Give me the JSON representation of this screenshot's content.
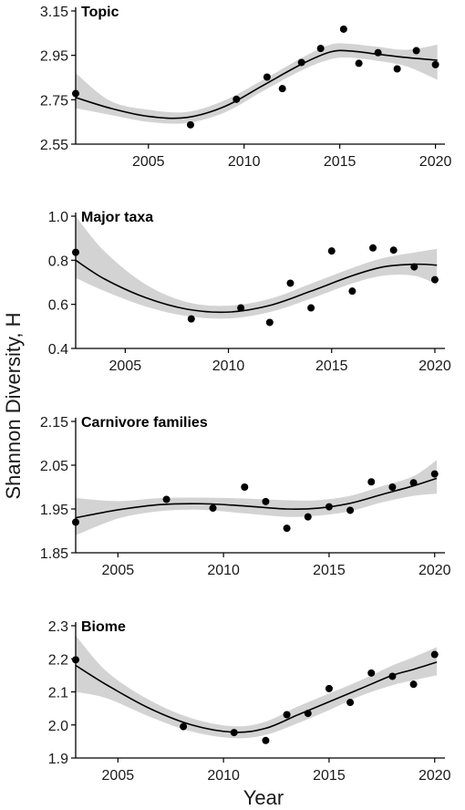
{
  "ylabel": "Shannon Diversity, H",
  "xlabel": "Year",
  "colors": {
    "band": "#d3d3d3",
    "line": "#000000",
    "point": "#000000",
    "axis": "#000000"
  },
  "chart_data": [
    {
      "type": "scatter",
      "title": "Topic",
      "xlim": [
        2001.2,
        2020.4
      ],
      "ylim": [
        2.55,
        3.15
      ],
      "xticks": [
        2005,
        2010,
        2015,
        2020
      ],
      "yticks": [
        2.55,
        2.75,
        2.95,
        3.15
      ],
      "xtick_labels": [
        "2005",
        "2010",
        "2015",
        "2020"
      ],
      "ytick_labels": [
        "2.55",
        "2.75",
        "2.95",
        "3.15"
      ],
      "points": {
        "x": [
          2001.2,
          2007.2,
          2009.6,
          2011.2,
          2012.0,
          2013.0,
          2014.0,
          2015.2,
          2016.0,
          2017.0,
          2018.0,
          2019.0,
          2020.0
        ],
        "y": [
          2.778,
          2.637,
          2.752,
          2.852,
          2.8,
          2.918,
          2.981,
          3.068,
          2.914,
          2.962,
          2.889,
          2.971,
          2.908
        ]
      },
      "smooth": {
        "x": [
          2001.2,
          2003,
          2005,
          2007,
          2009,
          2011,
          2013,
          2014.5,
          2015.5,
          2017,
          2018.5,
          2020.1
        ],
        "y": [
          2.76,
          2.712,
          2.675,
          2.67,
          2.72,
          2.815,
          2.91,
          2.965,
          2.97,
          2.955,
          2.94,
          2.928
        ],
        "lower": [
          2.712,
          2.682,
          2.65,
          2.645,
          2.693,
          2.79,
          2.882,
          2.932,
          2.94,
          2.925,
          2.9,
          2.84
        ],
        "upper": [
          2.87,
          2.745,
          2.705,
          2.695,
          2.748,
          2.84,
          2.938,
          2.998,
          3.002,
          2.988,
          2.975,
          2.998
        ]
      }
    },
    {
      "type": "scatter",
      "title": "Major taxa",
      "xlim": [
        2002.6,
        2020.4
      ],
      "ylim": [
        0.4,
        1.0
      ],
      "xticks": [
        2005,
        2010,
        2015,
        2020
      ],
      "yticks": [
        0.4,
        0.6,
        0.8,
        1.0
      ],
      "xtick_labels": [
        "2005",
        "2010",
        "2015",
        "2020"
      ],
      "ytick_labels": [
        "0.4",
        "0.6",
        "0.8",
        "1.0"
      ],
      "points": {
        "x": [
          2002.6,
          2008.2,
          2010.6,
          2012.0,
          2013.0,
          2014.0,
          2015.0,
          2016.0,
          2017.0,
          2018.0,
          2019.0,
          2020.0
        ],
        "y": [
          0.836,
          0.534,
          0.584,
          0.518,
          0.696,
          0.584,
          0.842,
          0.66,
          0.856,
          0.846,
          0.77,
          0.712
        ]
      },
      "smooth": {
        "x": [
          2002.6,
          2004,
          2006,
          2008,
          2010,
          2012,
          2014,
          2016,
          2017.5,
          2019,
          2020.1
        ],
        "y": [
          0.8,
          0.715,
          0.63,
          0.578,
          0.565,
          0.595,
          0.66,
          0.73,
          0.77,
          0.782,
          0.778
        ],
        "lower": [
          0.72,
          0.66,
          0.59,
          0.547,
          0.536,
          0.565,
          0.626,
          0.695,
          0.73,
          0.73,
          0.69
        ],
        "upper": [
          1.0,
          0.84,
          0.69,
          0.61,
          0.594,
          0.625,
          0.694,
          0.765,
          0.81,
          0.835,
          0.852
        ]
      }
    },
    {
      "type": "scatter",
      "title": "Carnivore families",
      "xlim": [
        2003.0,
        2020.4
      ],
      "ylim": [
        1.85,
        2.15
      ],
      "xticks": [
        2005,
        2010,
        2015,
        2020
      ],
      "yticks": [
        1.85,
        1.95,
        2.05,
        2.15
      ],
      "xtick_labels": [
        "2005",
        "2010",
        "2015",
        "2020"
      ],
      "ytick_labels": [
        "1.85",
        "1.95",
        "2.05",
        "2.15"
      ],
      "points": {
        "x": [
          2003.0,
          2007.3,
          2009.5,
          2011.0,
          2012.0,
          2013.0,
          2014.0,
          2015.0,
          2016.0,
          2017.0,
          2018.0,
          2019.0,
          2020.0
        ],
        "y": [
          1.92,
          1.972,
          1.952,
          2.0,
          1.967,
          1.906,
          1.932,
          1.955,
          1.947,
          2.012,
          2.0,
          2.01,
          2.03
        ]
      },
      "smooth": {
        "x": [
          2003.0,
          2005,
          2007,
          2009,
          2011,
          2013,
          2014.5,
          2016,
          2017.5,
          2019,
          2020.1
        ],
        "y": [
          1.93,
          1.948,
          1.96,
          1.962,
          1.957,
          1.95,
          1.952,
          1.963,
          1.983,
          2.003,
          2.02
        ],
        "lower": [
          1.89,
          1.928,
          1.945,
          1.948,
          1.94,
          1.932,
          1.935,
          1.945,
          1.965,
          1.98,
          1.985
        ],
        "upper": [
          1.975,
          1.968,
          1.975,
          1.976,
          1.974,
          1.97,
          1.97,
          1.98,
          2.002,
          2.025,
          2.062
        ]
      }
    },
    {
      "type": "scatter",
      "title": "Biome",
      "xlim": [
        2003.0,
        2020.4
      ],
      "ylim": [
        1.9,
        2.3
      ],
      "xticks": [
        2005,
        2010,
        2015,
        2020
      ],
      "yticks": [
        1.9,
        2.0,
        2.1,
        2.2,
        2.3
      ],
      "xtick_labels": [
        "2005",
        "2010",
        "2015",
        "2020"
      ],
      "ytick_labels": [
        "1.9",
        "2.0",
        "2.1",
        "2.2",
        "2.3"
      ],
      "points": {
        "x": [
          2003.0,
          2008.1,
          2010.5,
          2012.0,
          2013.0,
          2014.0,
          2015.0,
          2016.0,
          2017.0,
          2018.0,
          2019.0,
          2020.0
        ],
        "y": [
          2.197,
          1.995,
          1.977,
          1.953,
          2.031,
          2.035,
          2.11,
          2.068,
          2.157,
          2.147,
          2.123,
          2.213
        ]
      },
      "smooth": {
        "x": [
          2003.0,
          2004.5,
          2006.5,
          2008.5,
          2010.5,
          2012,
          2013.5,
          2015,
          2016.5,
          2018,
          2019,
          2020.1
        ],
        "y": [
          2.18,
          2.12,
          2.05,
          2.0,
          1.978,
          1.99,
          2.03,
          2.07,
          2.11,
          2.15,
          2.168,
          2.19
        ],
        "lower": [
          2.1,
          2.08,
          2.025,
          1.98,
          1.96,
          1.97,
          2.005,
          2.045,
          2.088,
          2.12,
          2.135,
          2.15
        ],
        "upper": [
          2.27,
          2.16,
          2.075,
          2.02,
          1.996,
          2.01,
          2.055,
          2.095,
          2.135,
          2.18,
          2.205,
          2.235
        ]
      }
    }
  ]
}
